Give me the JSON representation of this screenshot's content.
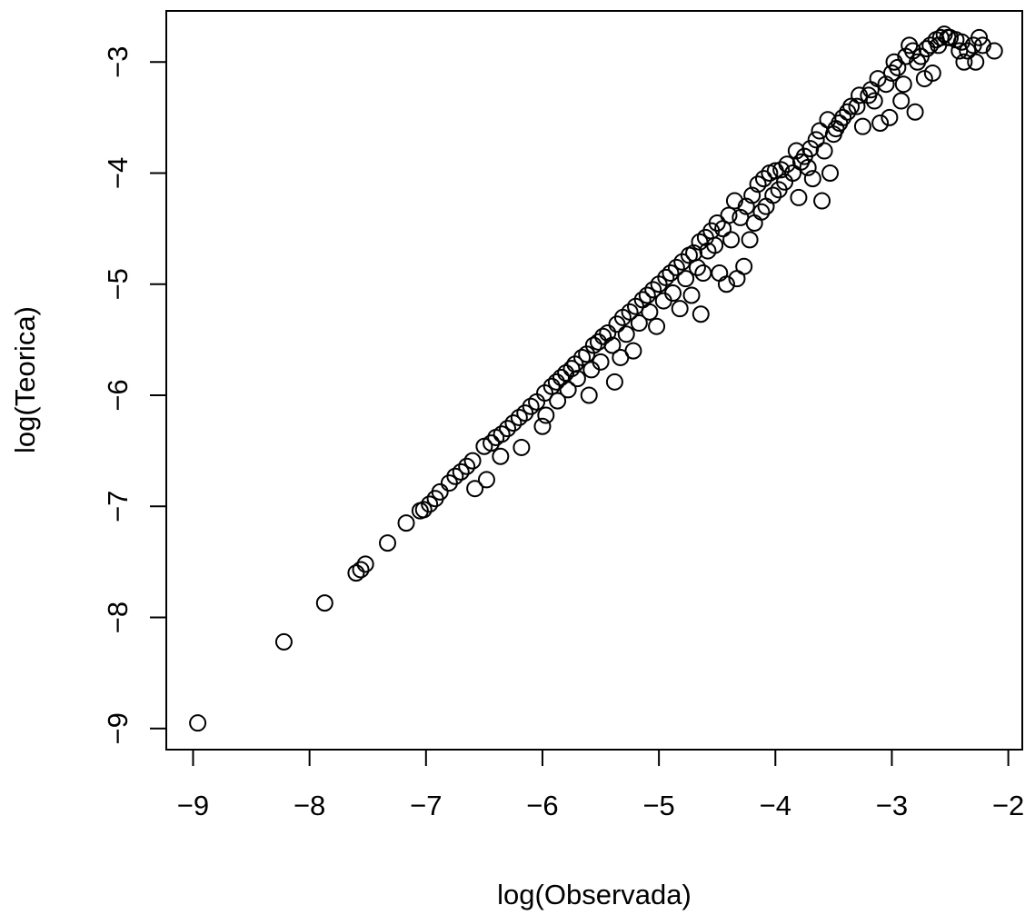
{
  "chart_data": {
    "type": "scatter",
    "x_label": "log(Observada)",
    "y_label": "log(Teorica)",
    "xlim": [
      -9.23,
      -1.88
    ],
    "ylim": [
      -9.19,
      -2.54
    ],
    "xticks": [
      {
        "value": -9,
        "label": "−9"
      },
      {
        "value": -8,
        "label": "−8"
      },
      {
        "value": -7,
        "label": "−7"
      },
      {
        "value": -6,
        "label": "−6"
      },
      {
        "value": -5,
        "label": "−5"
      },
      {
        "value": -4,
        "label": "−4"
      },
      {
        "value": -3,
        "label": "−3"
      },
      {
        "value": -2,
        "label": "−2"
      }
    ],
    "yticks": [
      {
        "value": -9,
        "label": "−9"
      },
      {
        "value": -8,
        "label": "−8"
      },
      {
        "value": -7,
        "label": "−7"
      },
      {
        "value": -6,
        "label": "−6"
      },
      {
        "value": -5,
        "label": "−5"
      },
      {
        "value": -4,
        "label": "−4"
      },
      {
        "value": -3,
        "label": "−3"
      }
    ],
    "color": "#000000",
    "x": [
      -8.96,
      -8.22,
      -7.87,
      -7.6,
      -7.56,
      -7.52,
      -7.33,
      -7.17,
      -7.05,
      -7.02,
      -6.97,
      -6.92,
      -6.88,
      -6.8,
      -6.75,
      -6.7,
      -6.65,
      -6.6,
      -6.58,
      -6.48,
      -6.5,
      -6.44,
      -6.4,
      -6.36,
      -6.35,
      -6.3,
      -6.25,
      -6.2,
      -6.18,
      -6.15,
      -6.1,
      -6.05,
      -5.98,
      -6.0,
      -5.97,
      -5.92,
      -5.88,
      -5.87,
      -5.84,
      -5.8,
      -5.78,
      -5.75,
      -5.72,
      -5.7,
      -5.66,
      -5.62,
      -5.6,
      -5.58,
      -5.56,
      -5.52,
      -5.5,
      -5.48,
      -5.44,
      -5.4,
      -5.38,
      -5.36,
      -5.33,
      -5.31,
      -5.28,
      -5.25,
      -5.22,
      -5.2,
      -5.17,
      -5.14,
      -5.1,
      -5.08,
      -5.05,
      -5.02,
      -5.0,
      -4.96,
      -4.94,
      -4.9,
      -4.88,
      -4.85,
      -4.82,
      -4.8,
      -4.77,
      -4.74,
      -4.72,
      -4.7,
      -4.67,
      -4.65,
      -4.64,
      -4.62,
      -4.6,
      -4.58,
      -4.55,
      -4.52,
      -4.5,
      -4.48,
      -4.45,
      -4.42,
      -4.4,
      -4.38,
      -4.35,
      -4.33,
      -4.3,
      -4.27,
      -4.25,
      -4.22,
      -4.2,
      -4.18,
      -4.15,
      -4.12,
      -4.1,
      -4.08,
      -4.05,
      -4.02,
      -4.0,
      -3.97,
      -3.95,
      -3.92,
      -3.9,
      -3.85,
      -3.82,
      -3.8,
      -3.78,
      -3.75,
      -3.72,
      -3.7,
      -3.68,
      -3.65,
      -3.62,
      -3.6,
      -3.58,
      -3.55,
      -3.53,
      -3.5,
      -3.48,
      -3.45,
      -3.42,
      -3.38,
      -3.35,
      -3.3,
      -3.28,
      -3.25,
      -3.2,
      -3.18,
      -3.15,
      -3.12,
      -3.1,
      -3.05,
      -3.02,
      -3.0,
      -2.98,
      -2.95,
      -2.92,
      -2.9,
      -2.88,
      -2.85,
      -2.82,
      -2.8,
      -2.78,
      -2.75,
      -2.72,
      -2.7,
      -2.67,
      -2.65,
      -2.62,
      -2.6,
      -2.58,
      -2.55,
      -2.52,
      -2.5,
      -2.45,
      -2.42,
      -2.4,
      -2.38,
      -2.35,
      -2.3,
      -2.28,
      -2.25,
      -2.22,
      -2.12
    ],
    "y": [
      -8.95,
      -8.22,
      -7.87,
      -7.6,
      -7.57,
      -7.52,
      -7.33,
      -7.15,
      -7.04,
      -7.03,
      -6.98,
      -6.93,
      -6.87,
      -6.79,
      -6.73,
      -6.69,
      -6.64,
      -6.59,
      -6.84,
      -6.76,
      -6.46,
      -6.43,
      -6.38,
      -6.55,
      -6.35,
      -6.3,
      -6.25,
      -6.2,
      -6.47,
      -6.16,
      -6.1,
      -6.06,
      -5.98,
      -6.28,
      -6.18,
      -5.92,
      -5.88,
      -6.05,
      -5.84,
      -5.8,
      -5.95,
      -5.76,
      -5.72,
      -5.85,
      -5.66,
      -5.63,
      -6.0,
      -5.77,
      -5.55,
      -5.52,
      -5.7,
      -5.47,
      -5.44,
      -5.55,
      -5.88,
      -5.36,
      -5.66,
      -5.3,
      -5.45,
      -5.25,
      -5.6,
      -5.2,
      -5.35,
      -5.14,
      -5.1,
      -5.25,
      -5.05,
      -5.38,
      -5.0,
      -5.15,
      -4.94,
      -4.9,
      -5.08,
      -4.85,
      -5.22,
      -4.8,
      -4.95,
      -4.74,
      -5.1,
      -4.72,
      -4.85,
      -4.62,
      -5.27,
      -4.9,
      -4.58,
      -4.7,
      -4.52,
      -4.65,
      -4.45,
      -4.9,
      -4.5,
      -5.0,
      -4.38,
      -4.6,
      -4.25,
      -4.95,
      -4.4,
      -4.84,
      -4.3,
      -4.6,
      -4.2,
      -4.45,
      -4.1,
      -4.35,
      -4.05,
      -4.3,
      -4.0,
      -4.2,
      -3.98,
      -4.15,
      -3.97,
      -4.08,
      -3.92,
      -4.0,
      -3.8,
      -4.22,
      -3.9,
      -3.85,
      -3.95,
      -3.78,
      -4.05,
      -3.7,
      -3.62,
      -4.25,
      -3.8,
      -3.52,
      -4.0,
      -3.65,
      -3.6,
      -3.55,
      -3.5,
      -3.45,
      -3.4,
      -3.4,
      -3.3,
      -3.58,
      -3.3,
      -3.25,
      -3.35,
      -3.15,
      -3.55,
      -3.2,
      -3.5,
      -3.1,
      -3.0,
      -3.05,
      -3.35,
      -3.2,
      -2.95,
      -2.85,
      -2.9,
      -3.45,
      -3.0,
      -2.95,
      -3.15,
      -2.88,
      -2.85,
      -3.1,
      -2.8,
      -2.85,
      -2.78,
      -2.75,
      -2.78,
      -2.78,
      -2.8,
      -2.9,
      -2.82,
      -3.0,
      -2.9,
      -2.85,
      -3.0,
      -2.78,
      -2.85,
      -2.9
    ]
  }
}
